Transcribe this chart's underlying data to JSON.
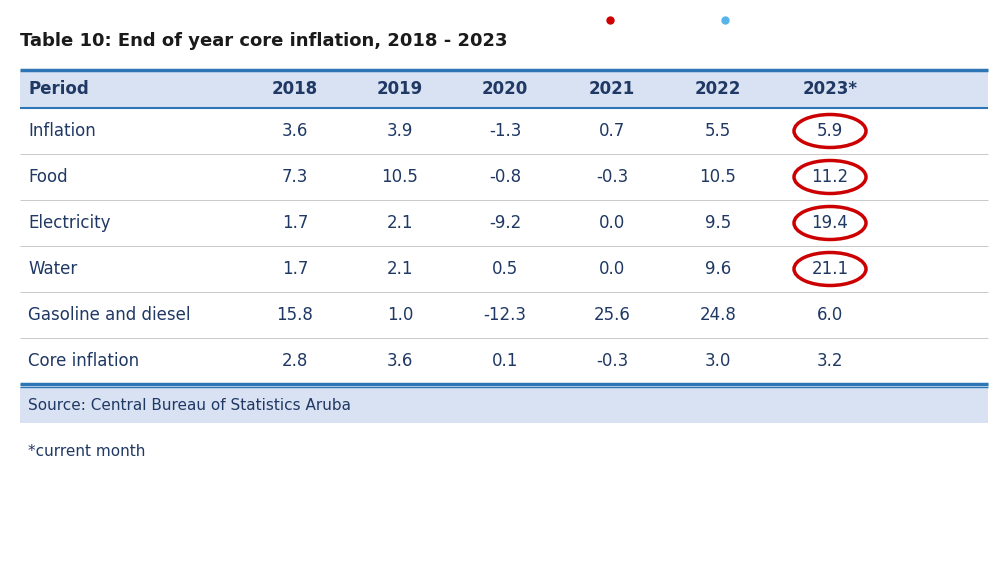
{
  "title": "Table 10: End of year core inflation, 2018 - 2023",
  "columns": [
    "Period",
    "2018",
    "2019",
    "2020",
    "2021",
    "2022",
    "2023*"
  ],
  "rows": [
    [
      "Inflation",
      "3.6",
      "3.9",
      "-1.3",
      "0.7",
      "5.5",
      "5.9"
    ],
    [
      "Food",
      "7.3",
      "10.5",
      "-0.8",
      "-0.3",
      "10.5",
      "11.2"
    ],
    [
      "Electricity",
      "1.7",
      "2.1",
      "-9.2",
      "0.0",
      "9.5",
      "19.4"
    ],
    [
      "Water",
      "1.7",
      "2.1",
      "0.5",
      "0.0",
      "9.6",
      "21.1"
    ],
    [
      "Gasoline and diesel",
      "15.8",
      "1.0",
      "-12.3",
      "25.6",
      "24.8",
      "6.0"
    ],
    [
      "Core inflation",
      "2.8",
      "3.6",
      "0.1",
      "-0.3",
      "3.0",
      "3.2"
    ]
  ],
  "circled_rows": [
    0,
    1,
    2,
    3
  ],
  "source_text": "Source: Central Bureau of Statistics Aruba",
  "footnote_text": "*current month",
  "header_bg": "#d9e2f3",
  "source_bg": "#d9e2f3",
  "body_bg": "#ffffff",
  "header_text_color": "#1f3864",
  "row_text_color": "#1f3864",
  "circle_color": "#cc0000",
  "title_color": "#1a1a1a",
  "dot_red": "#cc0000",
  "dot_blue": "#56b4e9",
  "thick_line_color": "#2e75b6",
  "thin_line_color": "#2e75b6",
  "sep_line_color": "#c0c0c0",
  "title_fontsize": 13,
  "header_fontsize": 12,
  "data_fontsize": 12,
  "source_fontsize": 11,
  "footnote_fontsize": 11
}
